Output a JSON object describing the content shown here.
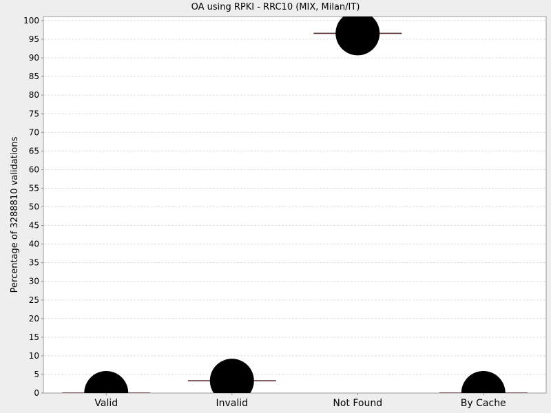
{
  "chart_data": {
    "type": "scatter",
    "title": "OA using RPKI - RRC10 (MIX, Milan/IT)",
    "xlabel": "",
    "ylabel": "Percentage of 3288810 validations",
    "categories": [
      "Valid",
      "Invalid",
      "Not Found",
      "By Cache"
    ],
    "values": [
      0,
      3.3,
      96.6,
      0
    ],
    "ylim": [
      0,
      100
    ],
    "yticks": [
      0,
      5,
      10,
      15,
      20,
      25,
      30,
      35,
      40,
      45,
      50,
      55,
      60,
      65,
      70,
      75,
      80,
      85,
      90,
      95,
      100
    ],
    "grid": true,
    "marker_color": "#000000",
    "line_color": "#5a2a2a"
  }
}
